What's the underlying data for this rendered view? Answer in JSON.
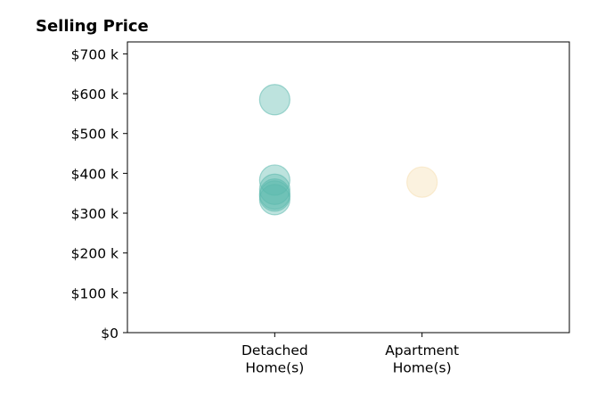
{
  "chart_data": {
    "type": "scatter",
    "title": "Selling Price",
    "xlabel": "",
    "ylabel": "",
    "categories": [
      [
        "Detached",
        "Home(s)"
      ],
      [
        "Apartment",
        "Home(s)"
      ]
    ],
    "x_range": [
      -1,
      2
    ],
    "ylim": [
      0,
      730000
    ],
    "y_ticks": [
      0,
      100000,
      200000,
      300000,
      400000,
      500000,
      600000,
      700000
    ],
    "y_tick_labels": [
      "$0",
      "$100 k",
      "$200 k",
      "$300 k",
      "$400 k",
      "$500 k",
      "$600 k",
      "$700 k"
    ],
    "grid": false,
    "series": [
      {
        "category_index": 0,
        "color": "#5bb8ad",
        "values": [
          585000,
          383000,
          360000,
          348000,
          343000,
          334000
        ]
      },
      {
        "category_index": 1,
        "color": "#f5deb0",
        "values": [
          378000
        ]
      }
    ]
  }
}
